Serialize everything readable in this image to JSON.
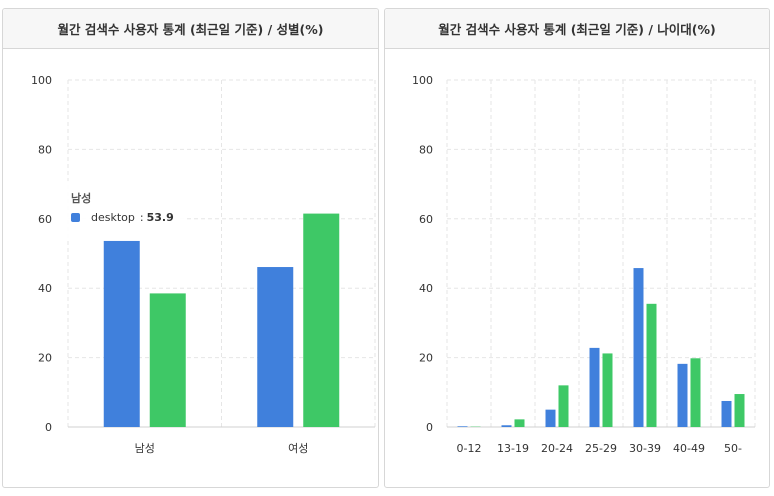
{
  "panels": {
    "left": {
      "title": "월간 검색수 사용자 통계 (최근일 기준) / 성별(%)"
    },
    "right": {
      "title": "월간 검색수 사용자 통계 (최근일 기준) / 나이대(%)"
    }
  },
  "colors": {
    "desktop": "#4080dc",
    "mobile": "#3ec866"
  },
  "tooltip": {
    "title": "남성",
    "series": "desktop",
    "separator": ":",
    "value": "53.9"
  },
  "chart_data": [
    {
      "type": "bar",
      "categories": [
        "남성",
        "여성"
      ],
      "series": [
        {
          "name": "desktop",
          "values": [
            53.9,
            46.1
          ]
        },
        {
          "values": [
            38.5,
            61.5
          ]
        }
      ],
      "title": "월간 검색수 사용자 통계 (최근일 기준) / 성별(%)",
      "ylim": [
        0,
        100
      ],
      "yticks": [
        0,
        20,
        40,
        60,
        80,
        100
      ],
      "grid": true
    },
    {
      "type": "bar",
      "categories": [
        "0-12",
        "13-19",
        "20-24",
        "25-29",
        "30-39",
        "40-49",
        "50-"
      ],
      "series": [
        {
          "values": [
            0.2,
            0.5,
            5.0,
            22.8,
            45.8,
            18.2,
            7.5
          ]
        },
        {
          "values": [
            0.1,
            2.2,
            12.0,
            21.2,
            35.5,
            19.8,
            9.5
          ]
        }
      ],
      "title": "월간 검색수 사용자 통계 (최근일 기준) / 나이대(%)",
      "ylim": [
        0,
        100
      ],
      "yticks": [
        0,
        20,
        40,
        60,
        80,
        100
      ],
      "grid": true
    }
  ]
}
